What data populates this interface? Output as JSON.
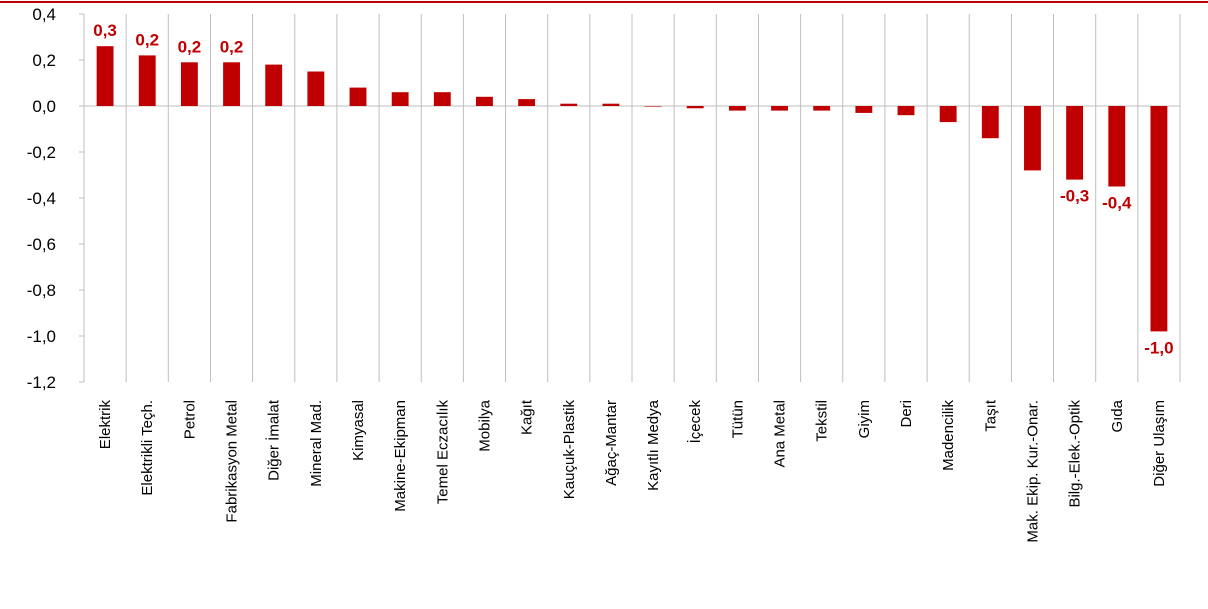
{
  "chart_data": {
    "type": "bar",
    "categories": [
      "Elektrik",
      "Elektrikli Teçh.",
      "Petrol",
      "Fabrikasyon Metal",
      "Diğer İmalat",
      "Mineral Mad.",
      "Kimyasal",
      "Makine-Ekipman",
      "Temel Eczacılık",
      "Mobilya",
      "Kağıt",
      "Kauçuk-Plastik",
      "Ağaç-Mantar",
      "Kayıtlı Medya",
      "İçecek",
      "Tütün",
      "Ana Metal",
      "Tekstil",
      "Giyim",
      "Deri",
      "Madencilik",
      "Taşıt",
      "Mak. Ekip. Kur.-Onar.",
      "Bilg.-Elek.-Optik",
      "Gıda",
      "Diğer Ulaşım"
    ],
    "values": [
      0.26,
      0.22,
      0.19,
      0.19,
      0.18,
      0.15,
      0.08,
      0.06,
      0.06,
      0.04,
      0.03,
      0.01,
      0.01,
      0.0,
      -0.01,
      -0.02,
      -0.02,
      -0.02,
      -0.03,
      -0.04,
      -0.07,
      -0.14,
      -0.28,
      -0.32,
      -0.35,
      -0.98
    ],
    "data_labels": {
      "0": "0,3",
      "1": "0,2",
      "2": "0,2",
      "3": "0,2",
      "23": "-0,3",
      "24": "-0,4",
      "25": "-1,0"
    },
    "ylim": [
      -1.2,
      0.4
    ],
    "y_ticks": [
      0.4,
      0.2,
      0.0,
      -0.2,
      -0.4,
      -0.6,
      -0.8,
      -1.0,
      -1.2
    ],
    "y_tick_labels": [
      "0,4",
      "0,2",
      "0,0",
      "-0,2",
      "-0,4",
      "-0,6",
      "-0,8",
      "-1,0",
      "-1,2"
    ],
    "grid": false,
    "colors": {
      "bar": "#c00000",
      "label": "#c00000",
      "axis": "#bfbfbf",
      "top_rule": "#c00000"
    }
  }
}
